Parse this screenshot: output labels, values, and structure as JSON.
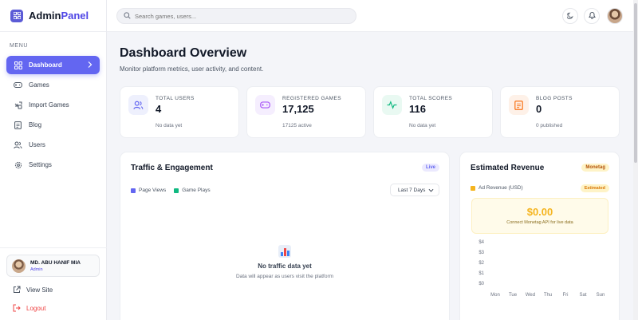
{
  "brand": {
    "name_primary": "Admin",
    "name_accent": "Panel"
  },
  "search": {
    "placeholder": "Search games, users..."
  },
  "sidebar": {
    "menu_label": "MENU",
    "items": [
      {
        "label": "Dashboard",
        "icon": "grid-icon",
        "active": true
      },
      {
        "label": "Games",
        "icon": "gamepad-icon"
      },
      {
        "label": "Import Games",
        "icon": "import-icon"
      },
      {
        "label": "Blog",
        "icon": "document-icon"
      },
      {
        "label": "Users",
        "icon": "users-icon"
      },
      {
        "label": "Settings",
        "icon": "gear-icon"
      }
    ],
    "user": {
      "name": "MD. ABU HANIF MIA",
      "role": "Admin"
    },
    "view_site": "View Site",
    "logout": "Logout"
  },
  "page": {
    "title": "Dashboard Overview",
    "subtitle": "Monitor platform metrics, user activity, and content."
  },
  "stats": [
    {
      "label": "TOTAL USERS",
      "value": "4",
      "note": "No data yet",
      "icon": "users-icon",
      "color": "#6366f1"
    },
    {
      "label": "REGISTERED GAMES",
      "value": "17,125",
      "note": "17125 active",
      "icon": "gamepad-icon",
      "color": "#a855f7"
    },
    {
      "label": "TOTAL SCORES",
      "value": "116",
      "note": "No data yet",
      "icon": "activity-icon",
      "color": "#10b981"
    },
    {
      "label": "BLOG POSTS",
      "value": "0",
      "note": "0 published",
      "icon": "document-icon",
      "color": "#f97316"
    }
  ],
  "traffic": {
    "title": "Traffic & Engagement",
    "badge": "Live",
    "legend": [
      {
        "label": "Page Views",
        "color": "#6366f1"
      },
      {
        "label": "Game Plays",
        "color": "#10b981"
      }
    ],
    "range": "Last 7 Days",
    "empty_title": "No traffic data yet",
    "empty_sub": "Data will appear as users visit the platform"
  },
  "revenue": {
    "title": "Estimated Revenue",
    "badge": "Monetag",
    "legend_label": "Ad Revenue (USD)",
    "legend_color": "#f5b41e",
    "status": "Estimated",
    "value": "$0.00",
    "note": "Connect Monetag API for live data",
    "y_ticks": [
      "$4",
      "$3",
      "$2",
      "$1",
      "$0"
    ],
    "days": [
      "Mon",
      "Tue",
      "Wed",
      "Thu",
      "Fri",
      "Sat",
      "Sun"
    ]
  }
}
